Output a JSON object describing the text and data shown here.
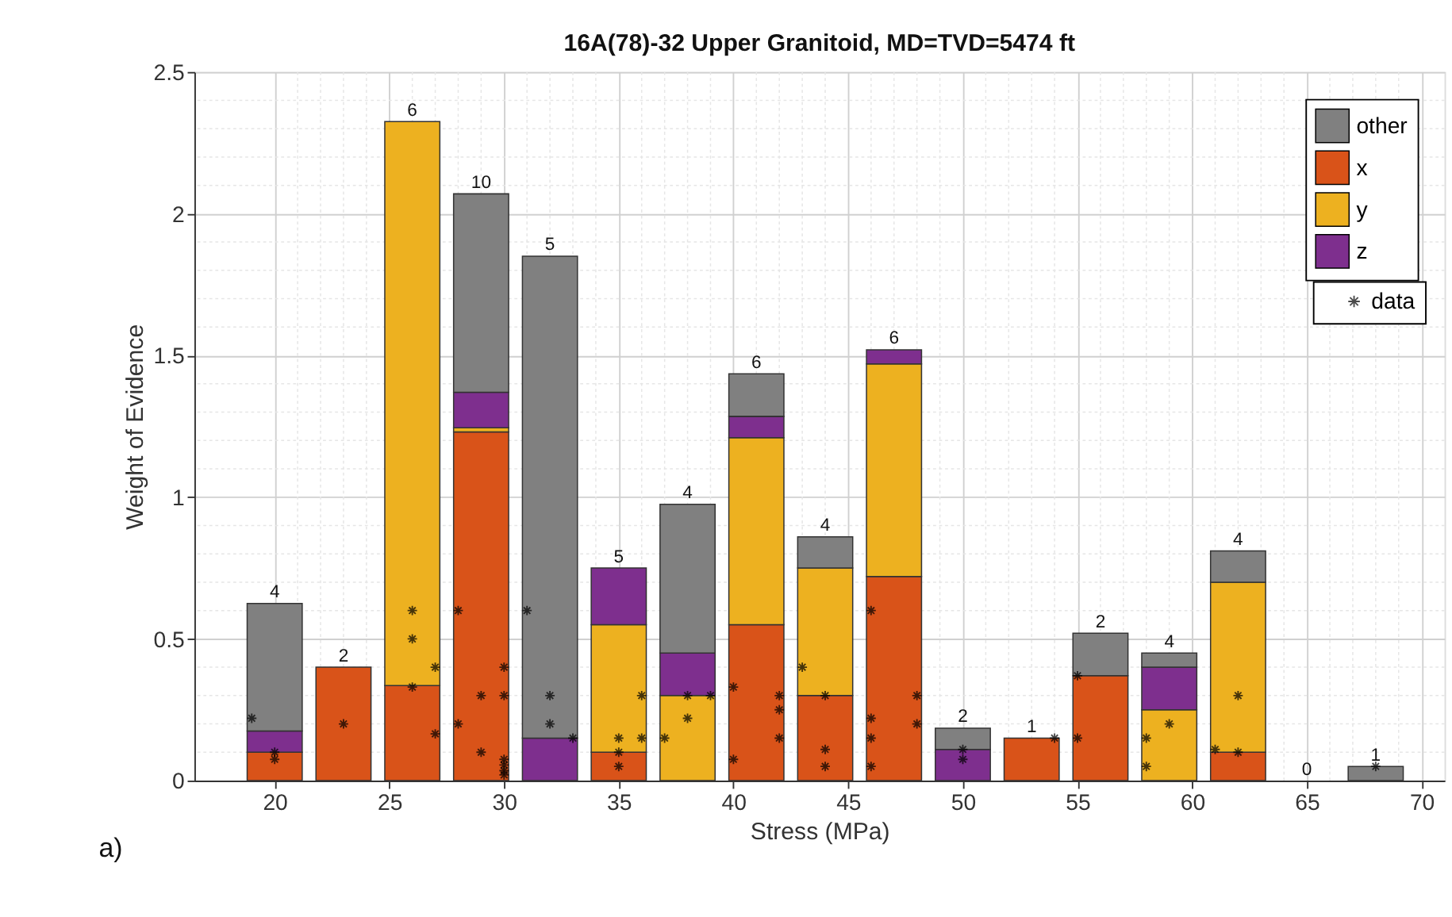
{
  "chart_data": {
    "type": "bar",
    "stacked": true,
    "title": "16A(78)-32 Upper Granitoid, MD=TVD=5474 ft",
    "xlabel": "Stress (MPa)",
    "ylabel": "Weight of Evidence",
    "x": [
      20,
      23,
      26,
      29,
      32,
      35,
      38,
      41,
      44,
      47,
      50,
      53,
      56,
      59,
      62,
      65,
      68
    ],
    "series": [
      {
        "name": "x",
        "color": "#d95319",
        "values": [
          0.1,
          0.4,
          0.335,
          1.23,
          null,
          0.1,
          null,
          0.55,
          0.3,
          0.72,
          null,
          0.15,
          0.37,
          null,
          0.1,
          null,
          null
        ]
      },
      {
        "name": "y",
        "color": "#edb120",
        "values": [
          null,
          null,
          1.99,
          0.015,
          null,
          0.45,
          0.3,
          0.66,
          0.45,
          0.75,
          null,
          null,
          null,
          0.25,
          0.6,
          null,
          null
        ]
      },
      {
        "name": "z",
        "color": "#7e2f8e",
        "values": [
          0.075,
          null,
          null,
          0.125,
          0.15,
          0.2,
          0.15,
          0.075,
          null,
          0.05,
          0.11,
          null,
          null,
          0.15,
          null,
          null,
          null
        ]
      },
      {
        "name": "other",
        "color": "#808080",
        "values": [
          0.45,
          null,
          null,
          0.7,
          1.7,
          null,
          0.525,
          0.15,
          0.11,
          null,
          0.075,
          null,
          0.15,
          0.05,
          0.11,
          null,
          0.05
        ]
      },
      {
        "name": "data",
        "type": "scatter",
        "color": "#000000",
        "x": [
          19,
          20,
          20,
          23,
          26,
          26,
          27,
          26,
          27,
          28,
          28,
          29,
          29,
          30,
          30,
          30,
          30,
          30,
          30,
          31,
          32,
          32,
          33,
          35,
          35,
          35,
          36,
          36,
          37,
          38,
          38,
          39,
          40,
          40,
          42,
          42,
          42,
          43,
          44,
          44,
          44,
          46,
          46,
          46,
          46,
          48,
          48,
          50,
          50,
          54,
          55,
          55,
          58,
          58,
          59,
          61,
          62,
          62,
          68
        ],
        "values": [
          0.22,
          0.1,
          0.075,
          0.2,
          0.6,
          0.5,
          0.4,
          0.33,
          0.165,
          0.6,
          0.2,
          0.3,
          0.1,
          0.4,
          0.3,
          0.075,
          0.055,
          0.035,
          0.02,
          0.6,
          0.3,
          0.2,
          0.15,
          0.15,
          0.1,
          0.05,
          0.3,
          0.15,
          0.15,
          0.3,
          0.22,
          0.3,
          0.33,
          0.075,
          0.3,
          0.25,
          0.15,
          0.4,
          0.3,
          0.11,
          0.05,
          0.6,
          0.22,
          0.15,
          0.05,
          0.3,
          0.2,
          0.11,
          0.075,
          0.15,
          0.15,
          0.37,
          0.15,
          0.05,
          0.2,
          0.11,
          0.1,
          0.3,
          0.05
        ]
      }
    ],
    "marker": "cross",
    "xlim": [
      16.5,
      71
    ],
    "xticks": [
      20,
      25,
      30,
      35,
      40,
      45,
      50,
      55,
      60,
      65,
      70
    ],
    "ylim": [
      0,
      2.5
    ],
    "yticks": [
      0,
      0.5,
      1,
      1.5,
      2,
      2.5
    ],
    "grid": true,
    "legend": "top right",
    "annotations": [
      {
        "text": "4",
        "x": 20,
        "y": 0.625
      },
      {
        "text": "2",
        "x": 23,
        "y": 0.4
      },
      {
        "text": "6",
        "x": 26,
        "y": 2.325
      },
      {
        "text": "10",
        "x": 29,
        "y": 2.07
      },
      {
        "text": "5",
        "x": 32,
        "y": 1.85
      },
      {
        "text": "5",
        "x": 35,
        "y": 0.75
      },
      {
        "text": "4",
        "x": 38,
        "y": 0.975
      },
      {
        "text": "6",
        "x": 41,
        "y": 1.435
      },
      {
        "text": "4",
        "x": 44,
        "y": 0.86
      },
      {
        "text": "6",
        "x": 47,
        "y": 1.52
      },
      {
        "text": "2",
        "x": 50,
        "y": 0.185
      },
      {
        "text": "1",
        "x": 53,
        "y": 0.15
      },
      {
        "text": "2",
        "x": 56,
        "y": 0.52
      },
      {
        "text": "4",
        "x": 59,
        "y": 0.45
      },
      {
        "text": "4",
        "x": 62,
        "y": 0.81
      },
      "0",
      {
        "text": "1",
        "x": 68,
        "y": 0.05
      },
      "a)"
    ]
  }
}
